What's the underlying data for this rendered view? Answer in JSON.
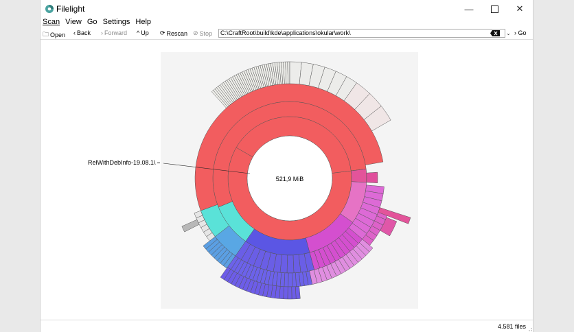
{
  "window": {
    "title": "Filelight"
  },
  "menu": [
    "Scan",
    "View",
    "Go",
    "Settings",
    "Help"
  ],
  "toolbar": {
    "open": "Open",
    "back": "Back",
    "forward": "Forward",
    "up": "Up",
    "rescan": "Rescan",
    "stop": "Stop",
    "path": "C:\\CraftRoot\\build\\kde\\applications\\okular\\work\\",
    "go": "Go"
  },
  "chart": {
    "center_label": "521,9 MiB",
    "callout_label": "RelWithDebInfo-19.08.1\\"
  },
  "status": {
    "files": "4.581 files"
  },
  "colors": {
    "red": "#f25d5f",
    "cyan": "#5ae2d8",
    "blue": "#5b9fe3",
    "indigo": "#5b56e4",
    "magenta": "#d44fcf",
    "pink": "#e3549a",
    "gray": "#e0e0e0"
  }
}
